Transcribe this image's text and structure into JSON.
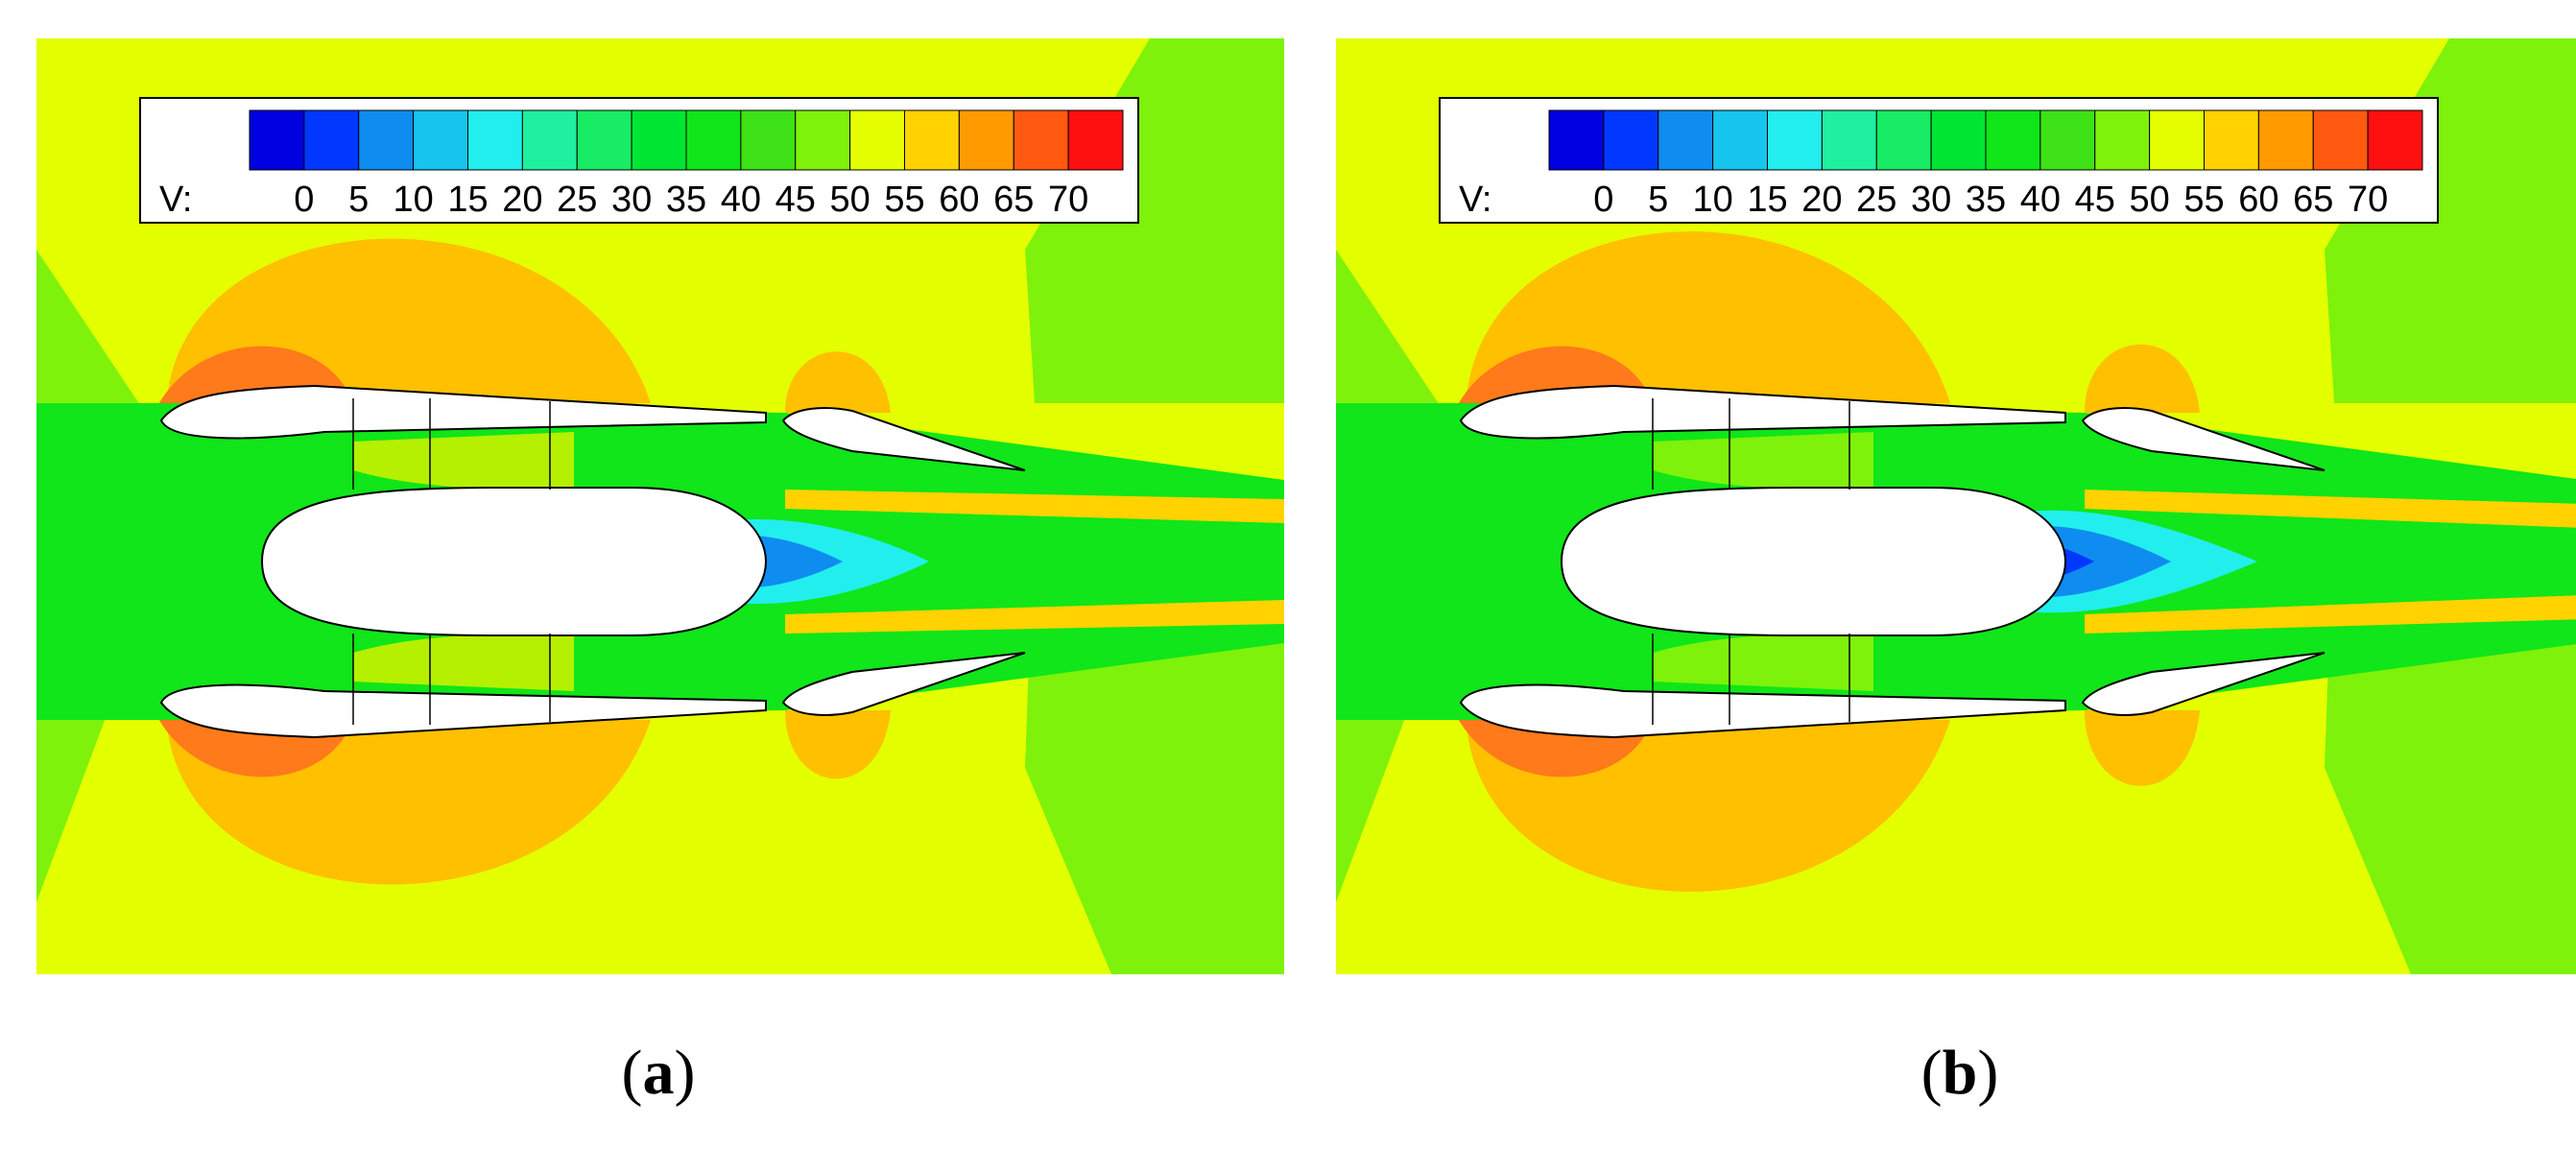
{
  "legend": {
    "variable_label": "V:",
    "ticks": [
      "0",
      "5",
      "10",
      "15",
      "20",
      "25",
      "30",
      "35",
      "40",
      "45",
      "50",
      "55",
      "60",
      "65",
      "70"
    ],
    "colors": [
      "#0000e0",
      "#0038ff",
      "#0f8cf0",
      "#16c4ee",
      "#22eeee",
      "#1ff0a0",
      "#18ec64",
      "#00e632",
      "#10e619",
      "#3ee216",
      "#7ef20a",
      "#e6ff00",
      "#ffd200",
      "#ff9a00",
      "#ff5a10",
      "#ff1010"
    ]
  },
  "panels": [
    {
      "id": "a",
      "caption_open": "(",
      "caption_letter": "a",
      "caption_close": ")"
    },
    {
      "id": "b",
      "caption_open": "(",
      "caption_letter": "b",
      "caption_close": ")"
    }
  ]
}
